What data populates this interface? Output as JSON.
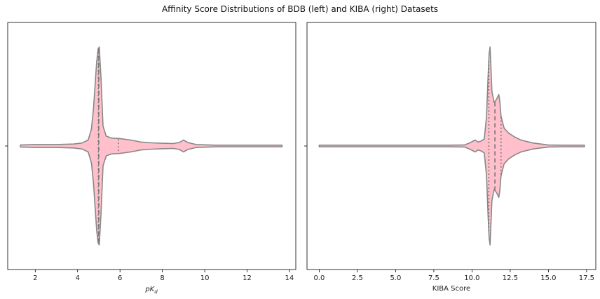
{
  "figure": {
    "title": "Affinity Score Distributions of BDB (left) and KIBA (right) Datasets"
  },
  "colors": {
    "violin_fill": "#ffc0cb",
    "violin_edge": "#888888",
    "axes_edge": "#000000",
    "quartile_line": "#777777"
  },
  "chart_data": [
    {
      "type": "violin",
      "panel": "left",
      "xlabel": "pKd",
      "xlabel_main": "pK",
      "xlabel_sub": "d",
      "xlim": [
        0.7,
        14.3
      ],
      "xticks": [
        2,
        4,
        6,
        8,
        10,
        12,
        14
      ],
      "xtick_labels": [
        "2",
        "4",
        "6",
        "8",
        "10",
        "12",
        "14"
      ],
      "range": [
        1.3,
        13.65
      ],
      "quartiles": {
        "q1": 4.98,
        "median": 5.0,
        "q3": 5.92
      },
      "density": [
        [
          1.3,
          0.01
        ],
        [
          2.0,
          0.015
        ],
        [
          3.0,
          0.015
        ],
        [
          3.8,
          0.02
        ],
        [
          4.2,
          0.03
        ],
        [
          4.5,
          0.06
        ],
        [
          4.65,
          0.17
        ],
        [
          4.75,
          0.38
        ],
        [
          4.82,
          0.6
        ],
        [
          4.9,
          0.85
        ],
        [
          4.97,
          0.98
        ],
        [
          5.02,
          1.0
        ],
        [
          5.1,
          0.7
        ],
        [
          5.2,
          0.2
        ],
        [
          5.35,
          0.1
        ],
        [
          5.6,
          0.08
        ],
        [
          6.0,
          0.075
        ],
        [
          6.5,
          0.06
        ],
        [
          7.0,
          0.04
        ],
        [
          7.5,
          0.032
        ],
        [
          8.0,
          0.028
        ],
        [
          8.5,
          0.025
        ],
        [
          8.8,
          0.035
        ],
        [
          9.0,
          0.06
        ],
        [
          9.2,
          0.035
        ],
        [
          9.6,
          0.015
        ],
        [
          10.5,
          0.008
        ],
        [
          12.0,
          0.005
        ],
        [
          13.65,
          0.005
        ]
      ]
    },
    {
      "type": "violin",
      "panel": "right",
      "xlabel": "KIBA Score",
      "xlim": [
        -0.8,
        18.1
      ],
      "xticks": [
        0.0,
        2.5,
        5.0,
        7.5,
        10.0,
        12.5,
        15.0,
        17.5
      ],
      "xtick_labels": [
        "0.0",
        "2.5",
        "5.0",
        "7.5",
        "10.0",
        "12.5",
        "15.0",
        "17.5"
      ],
      "range": [
        0.0,
        17.35
      ],
      "quartiles": {
        "q1": 11.1,
        "median": 11.5,
        "q3": 11.9
      },
      "density": [
        [
          0.0,
          0.005
        ],
        [
          5.0,
          0.005
        ],
        [
          8.5,
          0.005
        ],
        [
          9.5,
          0.01
        ],
        [
          9.9,
          0.035
        ],
        [
          10.2,
          0.06
        ],
        [
          10.4,
          0.04
        ],
        [
          10.6,
          0.05
        ],
        [
          10.8,
          0.07
        ],
        [
          10.95,
          0.3
        ],
        [
          11.05,
          0.7
        ],
        [
          11.12,
          0.93
        ],
        [
          11.18,
          1.0
        ],
        [
          11.3,
          0.55
        ],
        [
          11.45,
          0.44
        ],
        [
          11.6,
          0.47
        ],
        [
          11.75,
          0.52
        ],
        [
          11.82,
          0.45
        ],
        [
          11.9,
          0.3
        ],
        [
          12.1,
          0.18
        ],
        [
          12.4,
          0.13
        ],
        [
          12.8,
          0.09
        ],
        [
          13.2,
          0.06
        ],
        [
          14.0,
          0.03
        ],
        [
          15.0,
          0.01
        ],
        [
          16.0,
          0.005
        ],
        [
          17.35,
          0.005
        ]
      ]
    }
  ]
}
